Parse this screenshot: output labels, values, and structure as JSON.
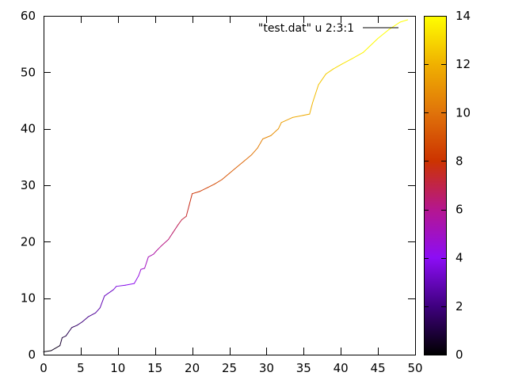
{
  "chart_data": {
    "type": "line",
    "legend": {
      "entries": [
        "\"test.dat\" u 2:3:1"
      ],
      "placement": "top-right"
    },
    "x_axis": {
      "range": [
        0,
        50
      ],
      "ticks": [
        0,
        5,
        10,
        15,
        20,
        25,
        30,
        35,
        40,
        45,
        50
      ]
    },
    "y_axis": {
      "range": [
        0,
        60
      ],
      "ticks": [
        0,
        10,
        20,
        30,
        40,
        50,
        60
      ]
    },
    "colorbar": {
      "range": [
        0,
        14
      ],
      "ticks": [
        0,
        2,
        4,
        6,
        8,
        10,
        12,
        14
      ],
      "palette": [
        "#000000",
        "#3f007f",
        "#8c0df5",
        "#b5168f",
        "#cc3300",
        "#e0730a",
        "#f0b100",
        "#ffff00"
      ]
    },
    "grid": false,
    "series": [
      {
        "points": [
          [
            0.0,
            0.5,
            0.0
          ],
          [
            1.0,
            0.7,
            0.3
          ],
          [
            2.2,
            1.6,
            0.6
          ],
          [
            2.5,
            3.0,
            0.9
          ],
          [
            3.0,
            3.3,
            1.1
          ],
          [
            3.8,
            4.8,
            1.4
          ],
          [
            4.5,
            5.2,
            1.7
          ],
          [
            5.2,
            5.8,
            1.9
          ],
          [
            6.0,
            6.7,
            2.2
          ],
          [
            7.0,
            7.4,
            2.5
          ],
          [
            7.6,
            8.3,
            2.8
          ],
          [
            8.2,
            10.4,
            3.0
          ],
          [
            9.4,
            11.5,
            3.3
          ],
          [
            9.8,
            12.1,
            3.6
          ],
          [
            11.0,
            12.3,
            3.8
          ],
          [
            12.2,
            12.6,
            4.1
          ],
          [
            12.8,
            14.0,
            4.4
          ],
          [
            13.1,
            15.1,
            4.7
          ],
          [
            13.6,
            15.3,
            4.9
          ],
          [
            14.1,
            17.3,
            5.2
          ],
          [
            14.8,
            17.8,
            5.5
          ],
          [
            15.2,
            18.4,
            5.7
          ],
          [
            15.8,
            19.2,
            6.0
          ],
          [
            16.8,
            20.4,
            6.3
          ],
          [
            17.4,
            21.6,
            6.5
          ],
          [
            18.1,
            23.0,
            6.8
          ],
          [
            18.6,
            23.9,
            7.1
          ],
          [
            19.2,
            24.5,
            7.3
          ],
          [
            19.6,
            26.5,
            7.6
          ],
          [
            20.0,
            28.5,
            7.9
          ],
          [
            21.0,
            28.9,
            8.1
          ],
          [
            22.1,
            29.6,
            8.4
          ],
          [
            23.0,
            30.2,
            8.7
          ],
          [
            24.0,
            31.0,
            8.9
          ],
          [
            25.0,
            32.1,
            9.2
          ],
          [
            26.0,
            33.2,
            9.5
          ],
          [
            27.0,
            34.3,
            9.7
          ],
          [
            28.0,
            35.4,
            10.0
          ],
          [
            28.8,
            36.6,
            10.3
          ],
          [
            29.5,
            38.2,
            10.5
          ],
          [
            30.6,
            38.8,
            10.8
          ],
          [
            31.6,
            40.0,
            11.1
          ],
          [
            32.0,
            41.1,
            11.3
          ],
          [
            33.5,
            42.0,
            11.6
          ],
          [
            35.8,
            42.6,
            11.9
          ],
          [
            36.2,
            44.6,
            12.1
          ],
          [
            37.0,
            47.8,
            12.4
          ],
          [
            38.0,
            49.7,
            12.7
          ],
          [
            39.0,
            50.6,
            12.9
          ],
          [
            40.2,
            51.5,
            13.2
          ],
          [
            41.5,
            52.4,
            13.5
          ],
          [
            43.0,
            53.5,
            13.7
          ],
          [
            45.0,
            56.0,
            14.0
          ],
          [
            46.5,
            57.6,
            14.2
          ],
          [
            48.0,
            58.9,
            14.4
          ],
          [
            49.0,
            59.3,
            14.6
          ]
        ]
      }
    ]
  }
}
